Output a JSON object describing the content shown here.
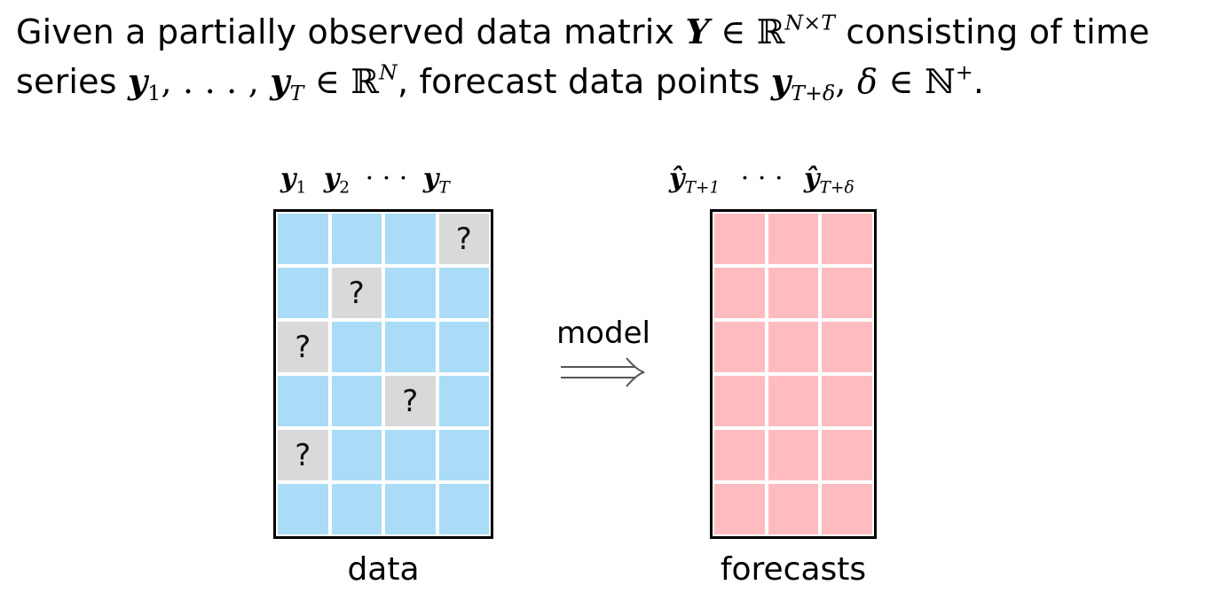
{
  "problem": {
    "line1": {
      "t1": "Given a partially observed data matrix ",
      "Y": "Y",
      "in": " ∈ ",
      "R": "ℝ",
      "dims": "N×T",
      "t2": " consisting of time"
    },
    "line2": {
      "t1": "series ",
      "y": "y",
      "sub1": "1",
      "dots": ", . . . , ",
      "y2": "y",
      "subT": "T",
      "in": " ∈ ",
      "R": "ℝ",
      "supN": "N",
      "t2": ", forecast data points ",
      "y3": "y",
      "subTd": "T+δ",
      "comma": ", ",
      "delta": "δ",
      "in2": " ∈ ",
      "Nset": "ℕ",
      "plus": "+",
      "end": "."
    }
  },
  "data_matrix": {
    "headers": [
      "y",
      "1",
      "y",
      "2",
      "· · ·",
      "y",
      "T"
    ],
    "caption": "data",
    "rows": 6,
    "cols": 4,
    "missing_mark": "?",
    "missing_cells": [
      [
        0,
        3
      ],
      [
        1,
        1
      ],
      [
        2,
        0
      ],
      [
        3,
        2
      ],
      [
        4,
        0
      ]
    ],
    "observed_color": "#aadcf7",
    "missing_color": "#d9d9d9"
  },
  "arrow": {
    "label": "model"
  },
  "forecast_matrix": {
    "headers": [
      "ŷ",
      "T+1",
      "· · ·",
      "ŷ",
      "T+δ"
    ],
    "caption": "forecasts",
    "rows": 6,
    "cols": 3,
    "color": "#ffbcc0"
  }
}
